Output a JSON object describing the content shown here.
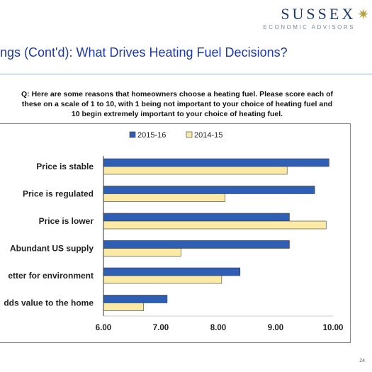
{
  "header": {
    "logo_name": "SUSSEX",
    "logo_tagline": "ECONOMIC ADVISORS",
    "title": "ngs (Cont'd): What Drives Heating Fuel Decisions?"
  },
  "question": {
    "line1": "Q: Here are some reasons that homeowners choose a heating fuel. Please score each of",
    "line2": "these on a scale of 1 to 10, with 1 being not important to your choice of heating fuel and",
    "line3": "10 begin extremely important to your choice of heating fuel."
  },
  "chart_data": {
    "type": "bar",
    "orientation": "horizontal",
    "categories": [
      "Price is stable",
      "Price is regulated",
      "Price is lower",
      "Abundant US supply",
      "etter for environment",
      "dds value to the home"
    ],
    "series": [
      {
        "name": "2015-16",
        "color": "#2e5fb5",
        "values": [
          9.93,
          9.68,
          9.24,
          9.24,
          8.38,
          7.11
        ]
      },
      {
        "name": "2014-15",
        "color": "#fbeaa5",
        "values": [
          9.2,
          8.12,
          9.88,
          7.35,
          8.06,
          6.7
        ]
      }
    ],
    "xlim": [
      6.0,
      10.0
    ],
    "xticks": [
      6.0,
      7.0,
      8.0,
      9.0,
      10.0
    ],
    "xtick_labels": [
      "6.00",
      "7.00",
      "8.00",
      "9.00",
      "10.00"
    ],
    "legend_position": "top",
    "grid": false
  },
  "page_number": "24"
}
